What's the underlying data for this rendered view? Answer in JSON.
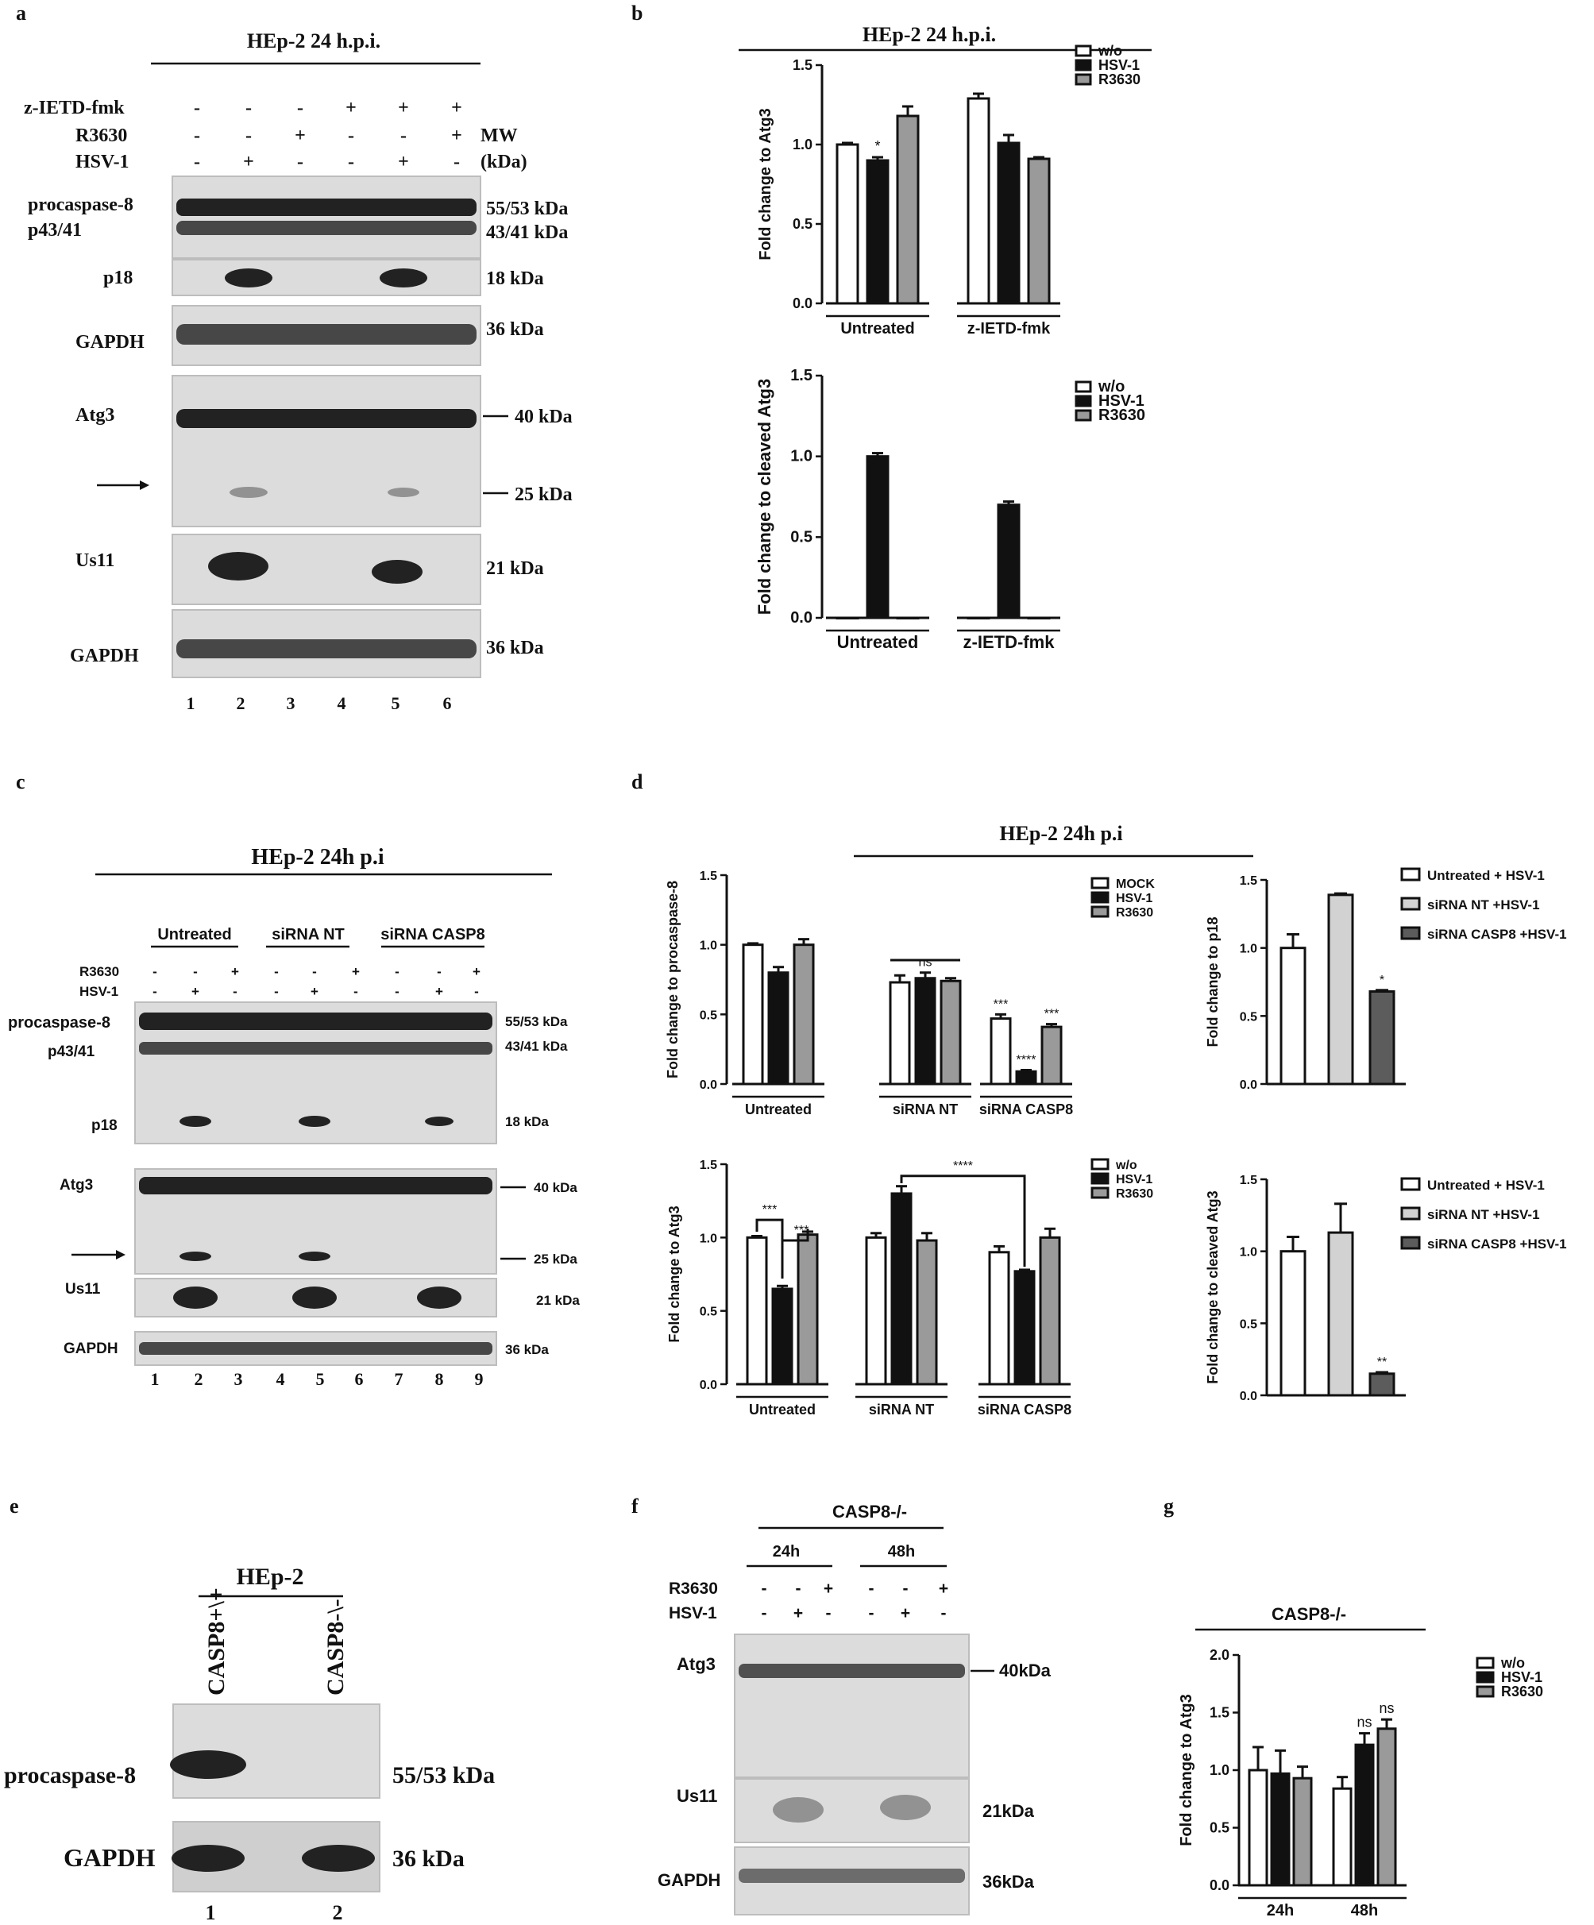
{
  "panel_labels": {
    "a": "a",
    "b": "b",
    "c": "c",
    "d": "d",
    "e": "e",
    "f": "f",
    "g": "g"
  },
  "panel_a": {
    "title": "HEp-2 24 h.p.i.",
    "treatments": [
      {
        "label": "z-IETD-fmk",
        "signs": [
          "-",
          "-",
          "-",
          "+",
          "+",
          "+"
        ]
      },
      {
        "label": "R3630",
        "signs": [
          "-",
          "-",
          "+",
          "-",
          "-",
          "+"
        ]
      },
      {
        "label": "HSV-1",
        "signs": [
          "-",
          "+",
          "-",
          "-",
          "+",
          "-"
        ]
      }
    ],
    "mw_label": "MW",
    "mw_unit": "(kDa)",
    "blots": [
      {
        "left": [
          "procaspase-8",
          "p43/41"
        ],
        "right": [
          "55/53 kDa",
          "43/41 kDa"
        ]
      },
      {
        "left": [
          "p18"
        ],
        "right": [
          "18 kDa"
        ]
      },
      {
        "left": [
          "GAPDH"
        ],
        "right": [
          "36 kDa"
        ]
      },
      {
        "left": [
          "Atg3"
        ],
        "right": [
          "40 kDa",
          "25 kDa"
        ]
      },
      {
        "left": [
          "Us11"
        ],
        "right": [
          "21 kDa"
        ]
      },
      {
        "left": [
          "GAPDH"
        ],
        "right": [
          "36 kDa"
        ]
      }
    ],
    "lanes": [
      "1",
      "2",
      "3",
      "4",
      "5",
      "6"
    ]
  },
  "panel_c": {
    "title": "HEp-2 24h p.i",
    "groups": [
      "Untreated",
      "siRNA NT",
      "siRNA CASP8"
    ],
    "treatments": [
      {
        "label": "R3630",
        "signs": [
          "-",
          "-",
          "+",
          "-",
          "-",
          "+",
          "-",
          "-",
          "+"
        ]
      },
      {
        "label": "HSV-1",
        "signs": [
          "-",
          "+",
          "-",
          "-",
          "+",
          "-",
          "-",
          "+",
          "-"
        ]
      }
    ],
    "left_labels": [
      "procaspase-8",
      "p43/41",
      "p18",
      "Atg3",
      "Us11",
      "GAPDH"
    ],
    "right_labels": [
      "55/53 kDa",
      "43/41 kDa",
      "18 kDa",
      "40 kDa",
      "25 kDa",
      "21 kDa",
      "36 kDa"
    ],
    "lanes": [
      "1",
      "2",
      "3",
      "4",
      "5",
      "6",
      "7",
      "8",
      "9"
    ]
  },
  "panel_d": {
    "title": "HEp-2 24h p.i"
  },
  "panel_e": {
    "title": "HEp-2",
    "columns": [
      "CASP8+\\+",
      "CASP8-\\-"
    ],
    "left_labels": [
      "procaspase-8",
      "GAPDH"
    ],
    "right_labels": [
      "55/53 kDa",
      "36 kDa"
    ],
    "lanes": [
      "1",
      "2"
    ]
  },
  "panel_f": {
    "title": "CASP8-/-",
    "timepoints": [
      "24h",
      "48h"
    ],
    "treatments": [
      {
        "label": "R3630",
        "signs": [
          "-",
          "-",
          "+",
          "-",
          "-",
          "+"
        ]
      },
      {
        "label": "HSV-1",
        "signs": [
          "-",
          "+",
          "-",
          "-",
          "+",
          "-"
        ]
      }
    ],
    "left_labels": [
      "Atg3",
      "Us11",
      "GAPDH"
    ],
    "right_labels": [
      "40kDa",
      "21kDa",
      "36kDa"
    ]
  },
  "panel_g": {
    "title": "CASP8-/-"
  },
  "chart_data": [
    {
      "id": "b-top",
      "type": "bar",
      "title": "HEp-2 24 h.p.i.",
      "ylabel": "Fold change to Atg3",
      "xlabel": "",
      "categories": [
        "Untreated",
        "z-IETD-fmk"
      ],
      "ylim": [
        0,
        1.5
      ],
      "yticks": [
        "0.0",
        "0.5",
        "1.0",
        "1.5"
      ],
      "series": [
        {
          "name": "w/o",
          "values": [
            1.0,
            1.29
          ],
          "errors": [
            0.01,
            0.03
          ]
        },
        {
          "name": "HSV-1",
          "values": [
            0.9,
            1.01
          ],
          "errors": [
            0.02,
            0.05
          ]
        },
        {
          "name": "R3630",
          "values": [
            1.18,
            0.91
          ],
          "errors": [
            0.06,
            0.01
          ]
        }
      ],
      "annotations": [
        {
          "text": "*",
          "category": 0,
          "series": 1
        }
      ],
      "legend": "top-right"
    },
    {
      "id": "b-bottom",
      "type": "bar",
      "ylabel": "Fold change to cleaved Atg3",
      "xlabel": "",
      "categories": [
        "Untreated",
        "z-IETD-fmk"
      ],
      "ylim": [
        0,
        1.5
      ],
      "yticks": [
        "0.0",
        "0.5",
        "1.0",
        "1.5"
      ],
      "series": [
        {
          "name": "w/o",
          "values": [
            0.0,
            0.0
          ],
          "errors": [
            0,
            0
          ]
        },
        {
          "name": "HSV-1",
          "values": [
            1.0,
            0.7
          ],
          "errors": [
            0.02,
            0.02
          ]
        },
        {
          "name": "R3630",
          "values": [
            0.0,
            0.0
          ],
          "errors": [
            0,
            0
          ]
        }
      ],
      "legend": "top-right"
    },
    {
      "id": "d-top-left",
      "type": "bar",
      "ylabel": "Fold change to procaspase-8",
      "xlabel": "",
      "categories": [
        "Untreated",
        "siRNA NT",
        "siRNA CASP8"
      ],
      "ylim": [
        0,
        1.5
      ],
      "yticks": [
        "0.0",
        "0.5",
        "1.0",
        "1.5"
      ],
      "series": [
        {
          "name": "MOCK",
          "values": [
            1.0,
            0.73,
            0.47
          ],
          "errors": [
            0.01,
            0.05,
            0.03
          ]
        },
        {
          "name": "HSV-1",
          "values": [
            0.8,
            0.76,
            0.09
          ],
          "errors": [
            0.04,
            0.04,
            0.01
          ]
        },
        {
          "name": "R3630",
          "values": [
            1.0,
            0.74,
            0.41
          ],
          "errors": [
            0.04,
            0.02,
            0.02
          ]
        }
      ],
      "annotations": [
        {
          "text": "ns",
          "category": 1,
          "series": 1
        },
        {
          "text": "***",
          "category": 2,
          "series": 0
        },
        {
          "text": "****",
          "category": 2,
          "series": 1
        },
        {
          "text": "***",
          "category": 2,
          "series": 2
        }
      ],
      "legend": "top-right"
    },
    {
      "id": "d-top-right",
      "type": "bar",
      "ylabel": "Fold change to p18",
      "xlabel": "",
      "categories": [
        "Untreated + HSV-1",
        "siRNA NT +HSV-1",
        "siRNA CASP8 +HSV-1"
      ],
      "values": [
        1.0,
        1.39,
        0.68
      ],
      "errors": [
        0.1,
        0.01,
        0.01
      ],
      "ylim": [
        0,
        1.5
      ],
      "yticks": [
        "0.0",
        "0.5",
        "1.0",
        "1.5"
      ],
      "annotations": [
        {
          "text": "*",
          "index": 2
        }
      ],
      "legend": "right"
    },
    {
      "id": "d-bottom-left",
      "type": "bar",
      "ylabel": "Fold change to Atg3",
      "xlabel": "",
      "categories": [
        "Untreated",
        "siRNA NT",
        "siRNA CASP8"
      ],
      "ylim": [
        0,
        1.5
      ],
      "yticks": [
        "0.0",
        "0.5",
        "1.0",
        "1.5"
      ],
      "series": [
        {
          "name": "w/o",
          "values": [
            1.0,
            1.0,
            0.9
          ],
          "errors": [
            0.01,
            0.03,
            0.04
          ]
        },
        {
          "name": "HSV-1",
          "values": [
            0.65,
            1.3,
            0.77
          ],
          "errors": [
            0.02,
            0.05,
            0.01
          ]
        },
        {
          "name": "R3630",
          "values": [
            1.02,
            0.98,
            1.0
          ],
          "errors": [
            0.02,
            0.05,
            0.06
          ]
        }
      ],
      "annotations": [
        "***",
        "***",
        "****"
      ],
      "legend": "top-right"
    },
    {
      "id": "d-bottom-right",
      "type": "bar",
      "ylabel": "Fold change to cleaved Atg3",
      "xlabel": "",
      "categories": [
        "Untreated + HSV-1",
        "siRNA NT +HSV-1",
        "siRNA CASP8 +HSV-1"
      ],
      "values": [
        1.0,
        1.13,
        0.15
      ],
      "errors": [
        0.1,
        0.2,
        0.01
      ],
      "ylim": [
        0,
        1.5
      ],
      "yticks": [
        "0.0",
        "0.5",
        "1.0",
        "1.5"
      ],
      "annotations": [
        {
          "text": "**",
          "index": 2
        }
      ],
      "legend": "right"
    },
    {
      "id": "g",
      "type": "bar",
      "title": "CASP8-/-",
      "ylabel": "Fold change to Atg3",
      "xlabel": "",
      "categories": [
        "24h",
        "48h"
      ],
      "ylim": [
        0,
        2.0
      ],
      "yticks": [
        "0.0",
        "0.5",
        "1.0",
        "1.5",
        "2.0"
      ],
      "series": [
        {
          "name": "w/o",
          "values": [
            1.0,
            0.84
          ],
          "errors": [
            0.2,
            0.1
          ]
        },
        {
          "name": "HSV-1",
          "values": [
            0.97,
            1.22
          ],
          "errors": [
            0.2,
            0.1
          ]
        },
        {
          "name": "R3630",
          "values": [
            0.93,
            1.36
          ],
          "errors": [
            0.1,
            0.08
          ]
        }
      ],
      "annotations": [
        {
          "text": "ns",
          "category": 1,
          "series": 1
        },
        {
          "text": "ns",
          "category": 1,
          "series": 2
        }
      ],
      "legend": "top-right"
    }
  ]
}
